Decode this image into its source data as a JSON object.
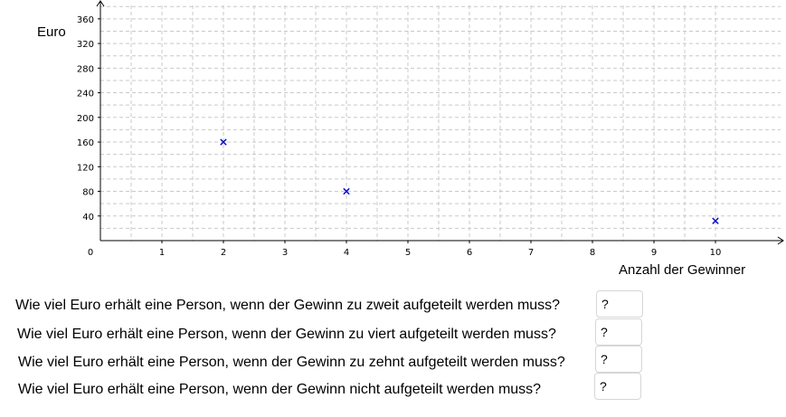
{
  "chart_data": {
    "type": "scatter",
    "xlabel": "Anzahl der Gewinner",
    "ylabel": "Euro",
    "xlim": [
      0,
      10.4
    ],
    "ylim": [
      0,
      360
    ],
    "x_ticks": [
      0,
      1,
      2,
      3,
      4,
      5,
      6,
      7,
      8,
      9,
      10
    ],
    "y_ticks": [
      40,
      80,
      120,
      160,
      200,
      240,
      280,
      320,
      360
    ],
    "grid": true,
    "marker_color": "#0000cc",
    "points": [
      {
        "x": 2,
        "y": 160
      },
      {
        "x": 4,
        "y": 80
      },
      {
        "x": 10,
        "y": 32
      }
    ]
  },
  "questions": [
    {
      "text": "Wie viel Euro erhält eine Person, wenn der Gewinn zu zweit aufgeteilt werden muss?",
      "answer": "?"
    },
    {
      "text": "Wie viel Euro erhält eine Person, wenn der Gewinn zu viert aufgeteilt werden muss?",
      "answer": "?"
    },
    {
      "text": "Wie viel Euro erhält eine Person, wenn der Gewinn zu zehnt aufgeteilt werden muss?",
      "answer": "?"
    },
    {
      "text": "Wie viel Euro erhält eine Person, wenn der Gewinn nicht aufgeteilt werden muss?",
      "answer": "?"
    }
  ]
}
